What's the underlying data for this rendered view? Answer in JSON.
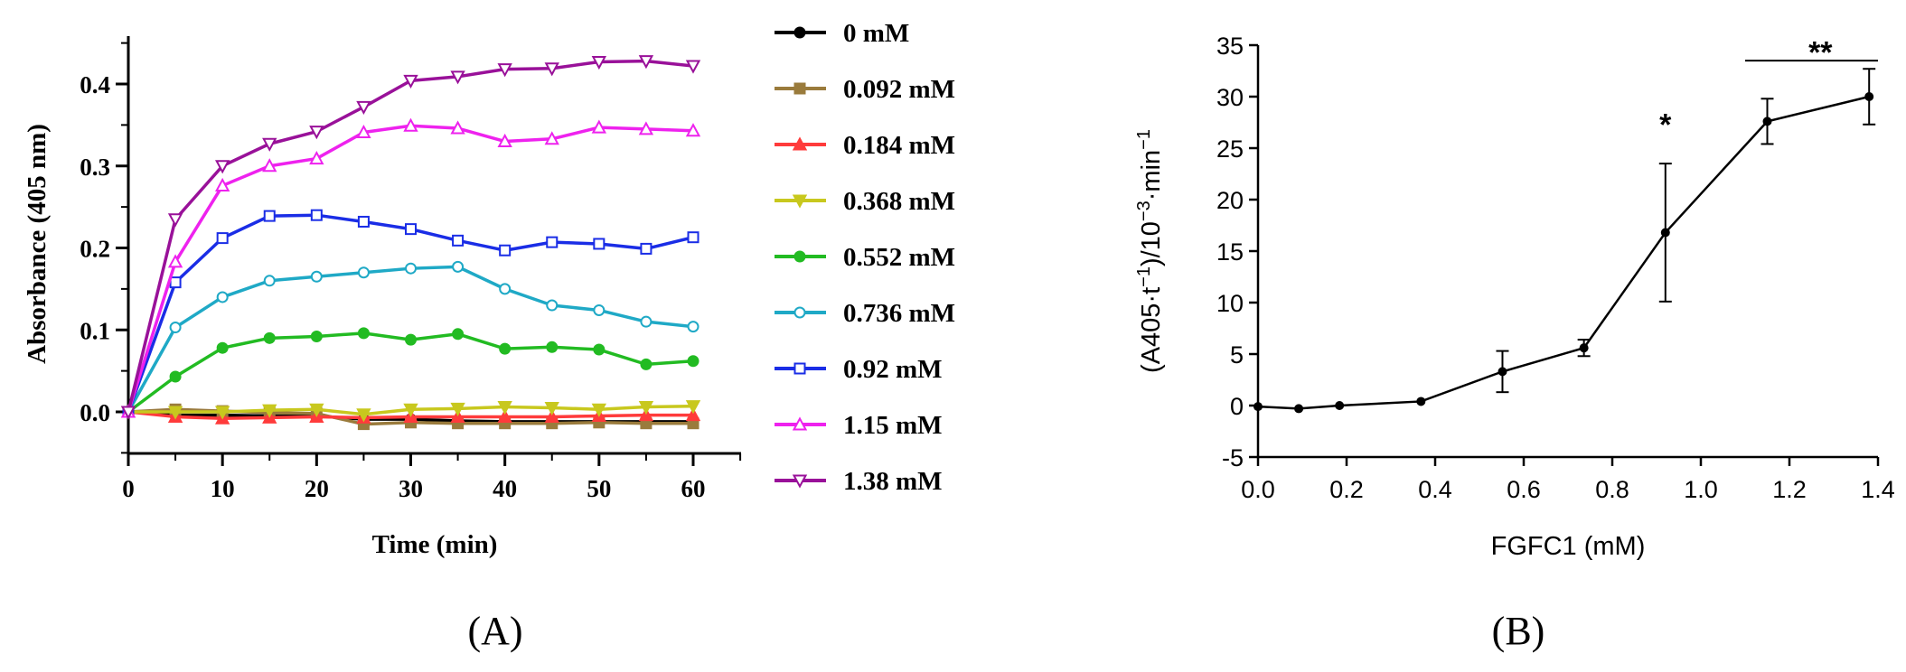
{
  "panel_labels": {
    "a": "(A)",
    "b": "(B)"
  },
  "chart_data": [
    {
      "type": "line",
      "x": [
        0,
        5,
        10,
        15,
        20,
        25,
        30,
        35,
        40,
        45,
        50,
        55,
        60
      ],
      "xlabel": "Time (min)",
      "ylabel": "Absorbance (405 nm)",
      "xlim": [
        0,
        65
      ],
      "ylim": [
        -0.05,
        0.45
      ],
      "xticks": [
        "0",
        "10",
        "20",
        "30",
        "40",
        "50",
        "60"
      ],
      "yticks": [
        "0.0",
        "0.1",
        "0.2",
        "0.3",
        "0.4"
      ],
      "legend_position": "right",
      "series": [
        {
          "name": "0 mM",
          "color": "#000000",
          "marker": "circle-filled",
          "values": [
            0,
            -0.004,
            -0.004,
            -0.005,
            -0.005,
            -0.009,
            -0.009,
            -0.011,
            -0.012,
            -0.012,
            -0.012,
            -0.012,
            -0.012
          ]
        },
        {
          "name": "0.092 mM",
          "color": "#9a7b3c",
          "marker": "square-filled",
          "values": [
            0,
            0.003,
            0.001,
            -0.001,
            -0.002,
            -0.015,
            -0.013,
            -0.014,
            -0.014,
            -0.014,
            -0.013,
            -0.014,
            -0.014
          ]
        },
        {
          "name": "0.184 mM",
          "color": "#ff3b3b",
          "marker": "triangle-up-filled",
          "values": [
            0,
            -0.006,
            -0.008,
            -0.007,
            -0.006,
            -0.007,
            -0.006,
            -0.006,
            -0.006,
            -0.006,
            -0.005,
            -0.004,
            -0.004
          ]
        },
        {
          "name": "0.368 mM",
          "color": "#c8c81e",
          "marker": "triangle-down-filled",
          "values": [
            0,
            0.0,
            0.0,
            0.002,
            0.003,
            -0.003,
            0.003,
            0.004,
            0.006,
            0.005,
            0.003,
            0.006,
            0.007
          ]
        },
        {
          "name": "0.552 mM",
          "color": "#22bb22",
          "marker": "circle-filled",
          "values": [
            0,
            0.043,
            0.078,
            0.09,
            0.092,
            0.096,
            0.088,
            0.095,
            0.077,
            0.079,
            0.076,
            0.058,
            0.062
          ]
        },
        {
          "name": "0.736 mM",
          "color": "#1fa9c6",
          "marker": "circle-open",
          "values": [
            0,
            0.103,
            0.14,
            0.16,
            0.165,
            0.17,
            0.175,
            0.177,
            0.15,
            0.13,
            0.124,
            0.11,
            0.104
          ]
        },
        {
          "name": "0.92 mM",
          "color": "#1a2de6",
          "marker": "square-open",
          "values": [
            0,
            0.158,
            0.212,
            0.239,
            0.24,
            0.232,
            0.223,
            0.209,
            0.197,
            0.207,
            0.205,
            0.199,
            0.213
          ]
        },
        {
          "name": "1.15 mM",
          "color": "#ee22ee",
          "marker": "triangle-up-open",
          "values": [
            0,
            0.183,
            0.276,
            0.3,
            0.309,
            0.341,
            0.349,
            0.346,
            0.33,
            0.333,
            0.347,
            0.345,
            0.343
          ]
        },
        {
          "name": "1.38 mM",
          "color": "#991199",
          "marker": "triangle-down-open",
          "values": [
            0,
            0.235,
            0.3,
            0.327,
            0.342,
            0.372,
            0.404,
            0.409,
            0.418,
            0.419,
            0.427,
            0.428,
            0.422
          ]
        }
      ]
    },
    {
      "type": "line",
      "x": [
        0,
        0.092,
        0.184,
        0.368,
        0.552,
        0.736,
        0.92,
        1.15,
        1.38
      ],
      "xlabel": "FGFC1 (mM)",
      "ylabel_parts": [
        "(A405·t",
        "−1",
        ")/10",
        "−3",
        "·min",
        "−1"
      ],
      "xlim": [
        0,
        1.4
      ],
      "ylim": [
        -5,
        35
      ],
      "xticks": [
        "0.0",
        "0.2",
        "0.4",
        "0.6",
        "0.8",
        "1.0",
        "1.2",
        "1.4"
      ],
      "yticks": [
        "-5",
        "0",
        "5",
        "10",
        "15",
        "20",
        "25",
        "30",
        "35"
      ],
      "color": "#000000",
      "series": [
        {
          "values": [
            -0.1,
            -0.3,
            0.0,
            0.4,
            3.3,
            5.6,
            16.8,
            27.6,
            30.0
          ],
          "error": [
            0,
            0,
            0,
            0,
            2.0,
            0.8,
            6.7,
            2.2,
            2.7
          ]
        }
      ],
      "annotations": [
        {
          "text": "*",
          "x": 0.92,
          "y": 27.5
        },
        {
          "text": "**",
          "x": 1.27,
          "y": 34.5,
          "bracket": [
            1.1,
            1.4
          ],
          "bracket_y": 33.5
        }
      ]
    }
  ]
}
